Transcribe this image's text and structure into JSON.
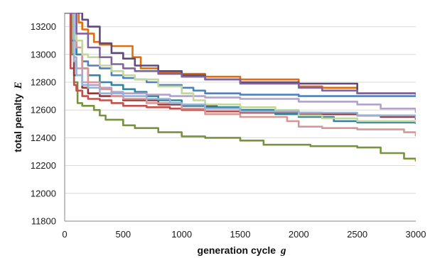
{
  "chart_data": {
    "type": "line",
    "title": "",
    "xlabel": "generation cycle",
    "xlabel_symbol": "g",
    "ylabel": "total penalty",
    "ylabel_symbol": "E",
    "xlim": [
      0,
      3000
    ],
    "ylim": [
      11800,
      13300
    ],
    "xticks": [
      0,
      500,
      1000,
      1500,
      2000,
      2500,
      3000
    ],
    "xtick_labels": [
      "0",
      "500",
      "1000",
      "1500",
      "2000",
      "2500",
      "3000"
    ],
    "yticks": [
      11800,
      12000,
      12200,
      12400,
      12600,
      12800,
      13000,
      13200
    ],
    "ytick_labels": [
      "11800",
      "12000",
      "12200",
      "12400",
      "12600",
      "12800",
      "13000",
      "13200"
    ],
    "grid": true,
    "legend": "none",
    "series": [
      {
        "color": "#77933C",
        "x": [
          0,
          60,
          80,
          110,
          150,
          250,
          300,
          350,
          500,
          600,
          800,
          1000,
          1200,
          1500,
          1700,
          2100,
          2500,
          2700,
          2900,
          3000
        ],
        "y": [
          13300,
          13000,
          12800,
          12650,
          12630,
          12600,
          12560,
          12530,
          12490,
          12470,
          12440,
          12410,
          12400,
          12380,
          12350,
          12340,
          12330,
          12290,
          12250,
          12230
        ]
      },
      {
        "color": "#E46C0A",
        "x": [
          0,
          120,
          150,
          200,
          250,
          300,
          400,
          500,
          580,
          650,
          800,
          1000,
          1200,
          1500,
          2000,
          2200,
          2500,
          3000
        ],
        "y": [
          13300,
          13230,
          13180,
          13150,
          13090,
          13070,
          13060,
          13060,
          12980,
          12900,
          12870,
          12860,
          12840,
          12820,
          12770,
          12760,
          12720,
          12720
        ]
      },
      {
        "color": "#604A7B",
        "x": [
          0,
          140,
          150,
          200,
          300,
          400,
          500,
          600,
          800,
          1000,
          1200,
          1500,
          2000,
          2500,
          3000
        ],
        "y": [
          13300,
          13300,
          13250,
          13200,
          13080,
          13010,
          12970,
          12920,
          12880,
          12850,
          12820,
          12800,
          12790,
          12720,
          12710
        ]
      },
      {
        "color": "#4F81BD",
        "x": [
          0,
          50,
          100,
          150,
          200,
          300,
          400,
          500,
          600,
          700,
          800,
          1000,
          1100,
          1200,
          1500,
          2000,
          2500,
          3000
        ],
        "y": [
          13300,
          13100,
          13000,
          12950,
          12920,
          12900,
          12850,
          12830,
          12820,
          12800,
          12780,
          12760,
          12740,
          12720,
          12710,
          12700,
          12700,
          12700
        ]
      },
      {
        "color": "#C0504D",
        "x": [
          0,
          50,
          80,
          100,
          150,
          200,
          300,
          400,
          500,
          700,
          900,
          1000,
          1200,
          1500,
          2000,
          2500,
          3000
        ],
        "y": [
          13300,
          12900,
          12780,
          12740,
          12700,
          12680,
          12670,
          12650,
          12630,
          12620,
          12610,
          12600,
          12590,
          12580,
          12570,
          12560,
          12530
        ]
      },
      {
        "color": "#953735",
        "x": [
          0,
          80,
          150,
          200,
          300,
          500,
          800,
          1000,
          1300,
          1500,
          1800,
          2000,
          2200,
          2500,
          2700,
          3000
        ],
        "y": [
          13300,
          12850,
          12760,
          12720,
          12700,
          12670,
          12640,
          12630,
          12610,
          12600,
          12590,
          12580,
          12570,
          12560,
          12550,
          12550
        ]
      },
      {
        "color": "#31859C",
        "x": [
          0,
          100,
          150,
          200,
          300,
          400,
          500,
          600,
          700,
          800,
          1000,
          1200,
          1500,
          1800,
          2000,
          2300,
          2500,
          3000
        ],
        "y": [
          13300,
          13000,
          12900,
          12850,
          12800,
          12780,
          12750,
          12730,
          12700,
          12670,
          12630,
          12620,
          12600,
          12570,
          12550,
          12520,
          12510,
          12500
        ]
      },
      {
        "color": "#B3A2C7",
        "x": [
          0,
          80,
          100,
          150,
          200,
          300,
          400,
          500,
          700,
          900,
          1000,
          1200,
          1500,
          2000,
          2500,
          2700,
          3000
        ],
        "y": [
          13300,
          12980,
          12900,
          12800,
          12780,
          12760,
          12730,
          12720,
          12710,
          12700,
          12700,
          12690,
          12680,
          12660,
          12640,
          12610,
          12580
        ]
      },
      {
        "color": "#D99694",
        "x": [
          0,
          100,
          150,
          200,
          300,
          400,
          500,
          700,
          1000,
          1200,
          1500,
          1900,
          2000,
          2200,
          2500,
          2900,
          3000
        ],
        "y": [
          13300,
          13050,
          12900,
          12800,
          12750,
          12700,
          12680,
          12650,
          12610,
          12570,
          12550,
          12520,
          12480,
          12470,
          12460,
          12440,
          12410
        ]
      },
      {
        "color": "#C3D69B",
        "x": [
          0,
          100,
          150,
          200,
          300,
          400,
          500,
          600,
          800,
          1000,
          1100,
          1200,
          1500,
          1800,
          2000,
          2200,
          2500,
          3000
        ],
        "y": [
          13300,
          13100,
          13000,
          12980,
          12920,
          12880,
          12850,
          12820,
          12770,
          12720,
          12670,
          12640,
          12620,
          12600,
          12560,
          12540,
          12520,
          12510
        ]
      },
      {
        "color": "#95B3D7",
        "x": [
          0,
          80,
          100,
          150,
          200,
          300,
          500,
          700,
          900,
          1000,
          1200,
          1500,
          2000,
          2500,
          3000
        ],
        "y": [
          13300,
          12950,
          12850,
          12780,
          12760,
          12720,
          12700,
          12680,
          12650,
          12640,
          12610,
          12590,
          12580,
          12560,
          12540
        ]
      },
      {
        "color": "#8064A2",
        "x": [
          0,
          100,
          200,
          300,
          400,
          500,
          600,
          800,
          1000,
          1200,
          1500,
          2000,
          2200,
          2500,
          3000
        ],
        "y": [
          13300,
          13150,
          13050,
          12980,
          12930,
          12900,
          12880,
          12860,
          12840,
          12820,
          12790,
          12760,
          12740,
          12720,
          12720
        ]
      }
    ]
  }
}
